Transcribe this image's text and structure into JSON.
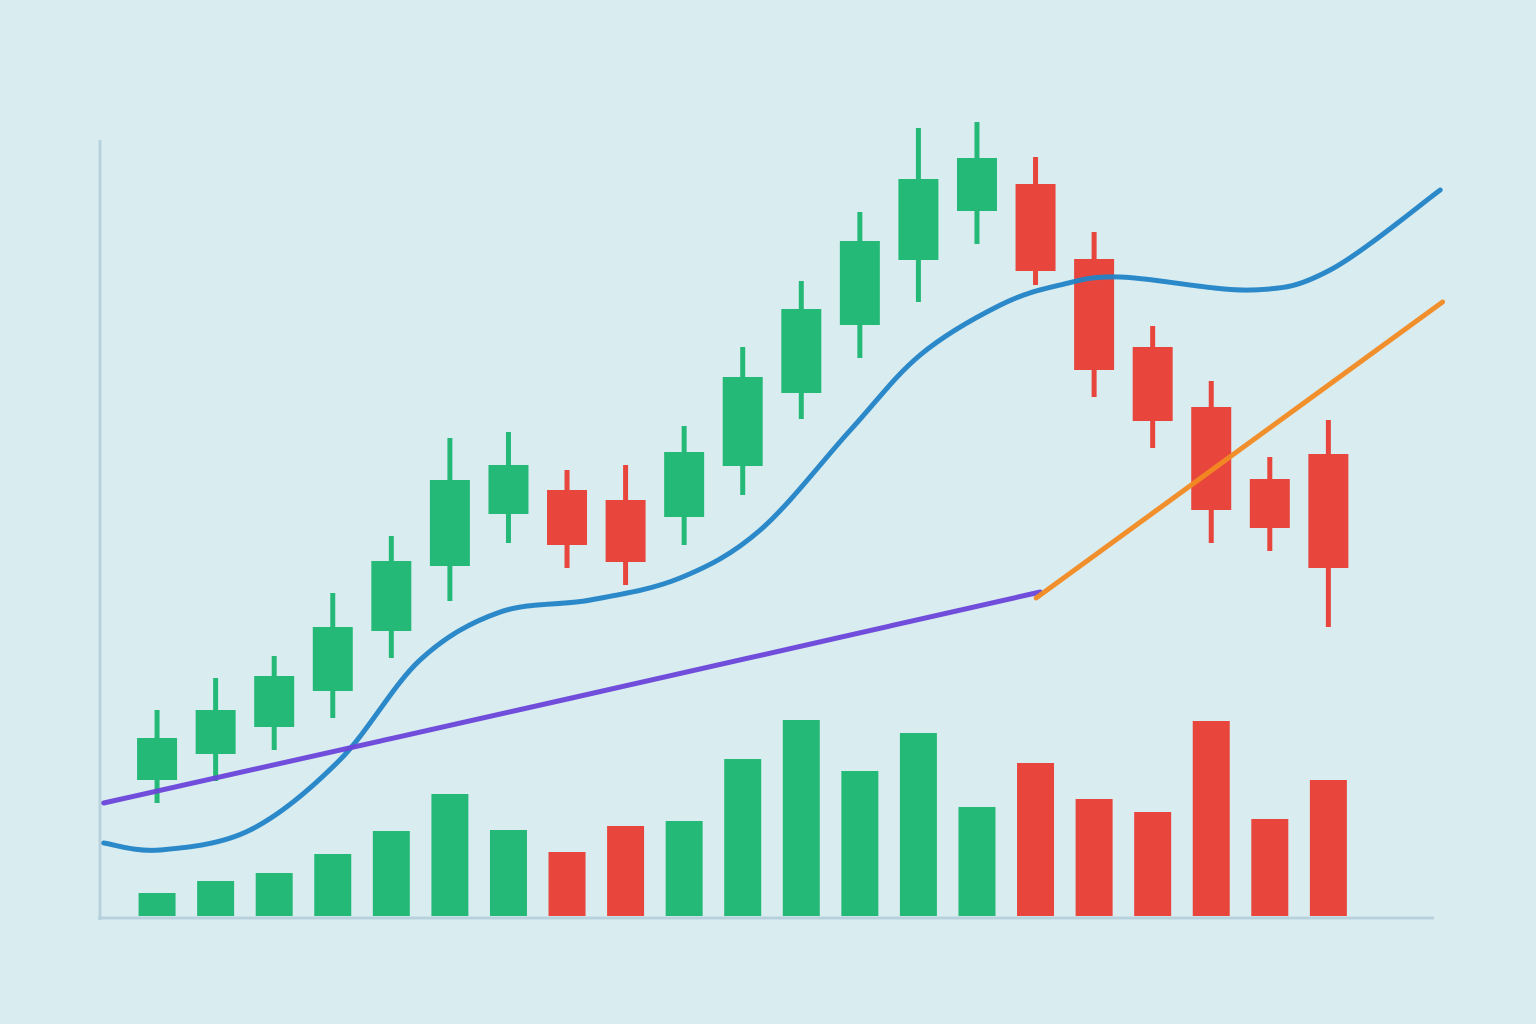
{
  "chart_data": {
    "type": "candlestick",
    "x": [
      0,
      1,
      2,
      3,
      4,
      5,
      6,
      7,
      8,
      9,
      10,
      11,
      12,
      13,
      14,
      15,
      16,
      17,
      18,
      19,
      20
    ],
    "open": [
      136,
      162,
      189,
      225,
      285,
      350,
      402,
      426,
      416,
      399,
      450,
      523,
      591,
      656,
      705,
      732,
      657,
      569,
      509,
      437,
      462
    ],
    "close": [
      178,
      206,
      240,
      289,
      355,
      436,
      451,
      371,
      354,
      464,
      539,
      607,
      675,
      737,
      758,
      645,
      546,
      495,
      406,
      388,
      348
    ],
    "high": [
      206,
      238,
      260,
      323,
      380,
      478,
      484,
      446,
      451,
      490,
      569,
      635,
      704,
      788,
      794,
      759,
      684,
      590,
      535,
      459,
      496
    ],
    "low": [
      113,
      135,
      166,
      198,
      258,
      315,
      373,
      348,
      331,
      371,
      421,
      497,
      558,
      614,
      672,
      631,
      519,
      468,
      373,
      365,
      289
    ],
    "volume": [
      23,
      35,
      43,
      62,
      85,
      122,
      86,
      64,
      90,
      95,
      157,
      196,
      145,
      183,
      109,
      153,
      117,
      104,
      195,
      97,
      136
    ],
    "up_color": "#25b978",
    "down_color": "#e8453c",
    "lines": [
      {
        "color": "#2384c6",
        "x": [
          -0.91,
          0.05,
          1.59,
          3.12,
          4.49,
          5.86,
          7.4,
          8.93,
          10.3,
          11.84,
          13.03,
          14.4,
          15.42,
          16.45,
          18.67,
          20.03,
          21.91
        ],
        "values": [
          73,
          66,
          86,
          156,
          256,
          304,
          316,
          338,
          386,
          486,
          561,
          611,
          631,
          639,
          626,
          646,
          726
        ]
      },
      {
        "color": "#6a45d8",
        "x": [
          -0.91,
          7.08,
          15.08
        ],
        "values": [
          113,
          218,
          324
        ]
      },
      {
        "color": "#f28a21",
        "x": [
          15.01,
          21.95
        ],
        "values": [
          318,
          614
        ]
      }
    ],
    "xlim": [
      -1,
      22
    ],
    "ylim": [
      0,
      800
    ]
  }
}
